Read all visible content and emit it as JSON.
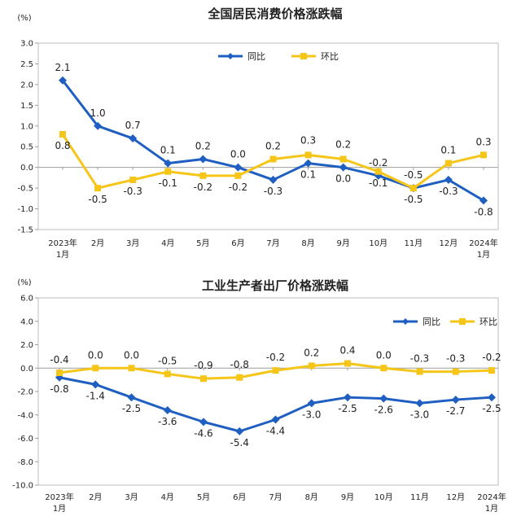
{
  "chart_data": [
    {
      "type": "line",
      "title": "全国居民消费价格涨跌幅",
      "unit_label": "(%)",
      "categories": [
        "2023年\n1月",
        "2月",
        "3月",
        "4月",
        "5月",
        "6月",
        "7月",
        "8月",
        "9月",
        "10月",
        "11月",
        "12月",
        "2024年\n1月"
      ],
      "yticks": [
        "3.0",
        "2.5",
        "2.0",
        "1.5",
        "1.0",
        "0.5",
        "0.0",
        "-0.5",
        "-1.0",
        "-1.5"
      ],
      "ylim": [
        -1.5,
        3.0
      ],
      "legend_position": "top-center",
      "series": [
        {
          "name": "同比",
          "color": "#1f5fc1",
          "values": [
            2.1,
            1.0,
            0.7,
            0.1,
            0.2,
            0.0,
            -0.3,
            0.1,
            0.0,
            -0.2,
            -0.5,
            -0.3,
            -0.8
          ],
          "labels": [
            "2.1",
            "1.0",
            "0.7",
            "0.1",
            "0.2",
            "0.0",
            "-0.3",
            "0.1",
            "0.0",
            "-0.2",
            "-0.5",
            "-0.3",
            "-0.8"
          ]
        },
        {
          "name": "环比",
          "color": "#f5c518",
          "values": [
            0.8,
            -0.5,
            -0.3,
            -0.1,
            -0.2,
            -0.2,
            0.2,
            0.3,
            0.2,
            -0.1,
            -0.5,
            0.1,
            0.3
          ],
          "labels": [
            "0.8",
            "-0.5",
            "-0.3",
            "-0.1",
            "-0.2",
            "-0.2",
            "0.2",
            "0.3",
            "0.2",
            "-0.1",
            "-0.5",
            "0.1",
            "0.3"
          ]
        }
      ]
    },
    {
      "type": "line",
      "title": "工业生产者出厂价格涨跌幅",
      "unit_label": "(%)",
      "categories": [
        "2023年\n1月",
        "2月",
        "3月",
        "4月",
        "5月",
        "6月",
        "7月",
        "8月",
        "9月",
        "10月",
        "11月",
        "12月",
        "2024年\n1月"
      ],
      "yticks": [
        "6.0",
        "4.0",
        "2.0",
        "0.0",
        "-2.0",
        "-4.0",
        "-6.0",
        "-8.0",
        "-10.0"
      ],
      "ylim": [
        -10.0,
        6.0
      ],
      "legend_position": "top-right",
      "series": [
        {
          "name": "同比",
          "color": "#1f5fc1",
          "values": [
            -0.8,
            -1.4,
            -2.5,
            -3.6,
            -4.6,
            -5.4,
            -4.4,
            -3.0,
            -2.5,
            -2.6,
            -3.0,
            -2.7,
            -2.5
          ],
          "labels": [
            "-0.8",
            "-1.4",
            "-2.5",
            "-3.6",
            "-4.6",
            "-5.4",
            "-4.4",
            "-3.0",
            "-2.5",
            "-2.6",
            "-3.0",
            "-2.7",
            "-2.5"
          ]
        },
        {
          "name": "环比",
          "color": "#f5c518",
          "values": [
            -0.4,
            0.0,
            0.0,
            -0.5,
            -0.9,
            -0.8,
            -0.2,
            0.2,
            0.4,
            0.0,
            -0.3,
            -0.3,
            -0.2
          ],
          "labels": [
            "-0.4",
            "0.0",
            "0.0",
            "-0.5",
            "-0.9",
            "-0.8",
            "-0.2",
            "0.2",
            "0.4",
            "0.0",
            "-0.3",
            "-0.3",
            "-0.2"
          ]
        }
      ]
    }
  ]
}
